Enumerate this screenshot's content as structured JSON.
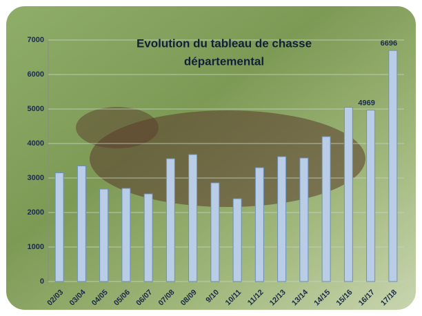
{
  "chart_data": {
    "type": "bar",
    "title": [
      "Evolution du tableau de chasse",
      "départemental"
    ],
    "categories": [
      "02/03",
      "03/04",
      "04/05",
      "05/06",
      "06/07",
      "07/08",
      "08/09",
      "9/10",
      "10/11",
      "11/12",
      "12/13",
      "13/14",
      "14/15",
      "15/16",
      "16/17",
      "17/18"
    ],
    "values": [
      3150,
      3350,
      2680,
      2700,
      2540,
      3560,
      3680,
      2860,
      2400,
      3300,
      3620,
      3580,
      4200,
      5050,
      4969,
      6696
    ],
    "color": "#b9cde6",
    "ylim": [
      0,
      7000
    ],
    "yticks": [
      0,
      1000,
      2000,
      3000,
      4000,
      5000,
      6000,
      7000
    ],
    "grid": true
  }
}
